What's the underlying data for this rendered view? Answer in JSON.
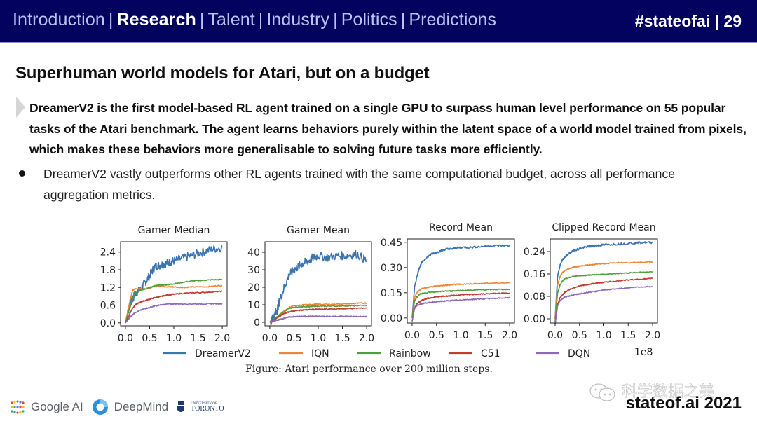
{
  "header": {
    "nav": [
      {
        "label": "Introduction",
        "active": false
      },
      {
        "label": "Research",
        "active": true
      },
      {
        "label": "Talent",
        "active": false
      },
      {
        "label": "Industry",
        "active": false
      },
      {
        "label": "Politics",
        "active": false
      },
      {
        "label": "Predictions",
        "active": false
      }
    ],
    "separator": "|",
    "slide_tag": "#stateofai | 29"
  },
  "slide": {
    "title": "Superhuman world models for Atari, but on a budget",
    "lead": "DreamerV2 is the first model-based RL agent trained on a single GPU to surpass human level performance on 55 popular tasks of the Atari benchmark. The agent learns behaviors purely within the latent space of a world model trained from pixels, which makes these behaviors more generalisable to solving future tasks more efficiently.",
    "bullet": "DreamerV2 vastly outperforms other RL agents trained with the same computational budget, across all performance aggregation metrics.",
    "caption": "Figure:  Atari performance over 200 million steps."
  },
  "footer": {
    "logos": [
      "Google AI",
      "DeepMind",
      "University of Toronto"
    ],
    "toronto_small": "UNIVERSITY OF",
    "toronto_big": "TORONTO",
    "watermark": "科学数据之美",
    "brand": "stateof.ai 2021"
  },
  "colors": {
    "header_bg": "#03035f",
    "DreamerV2": "#3b75af",
    "IQN": "#ef8636",
    "Rainbow": "#519e3e",
    "C51": "#c53a32",
    "DQN": "#8d69b8"
  },
  "chart_data": {
    "type": "line",
    "x_multiplier_label": "1e8",
    "x_ticks": [
      "0.0",
      "0.5",
      "1.0",
      "1.5",
      "2.0"
    ],
    "x": [
      0.0,
      0.05,
      0.1,
      0.15,
      0.2,
      0.3,
      0.4,
      0.5,
      0.6,
      0.7,
      0.8,
      0.9,
      1.0,
      1.2,
      1.4,
      1.6,
      1.8,
      2.0
    ],
    "legend": [
      "DreamerV2",
      "IQN",
      "Rainbow",
      "C51",
      "DQN"
    ],
    "legend_placement": "bottom",
    "panels": [
      {
        "title": "Gamer Median",
        "ylim": [
          -0.1,
          2.75
        ],
        "y_ticks": [
          "0.0",
          "0.6",
          "1.2",
          "1.8",
          "2.4"
        ],
        "y_tick_values": [
          0.0,
          0.6,
          1.2,
          1.8,
          2.4
        ],
        "series": [
          {
            "name": "DreamerV2",
            "values": [
              0.0,
              0.35,
              0.65,
              0.8,
              1.0,
              1.1,
              1.35,
              1.6,
              1.9,
              1.95,
              2.0,
              2.05,
              2.1,
              2.2,
              2.3,
              2.4,
              2.5,
              2.55
            ]
          },
          {
            "name": "IQN",
            "values": [
              0.0,
              0.4,
              0.8,
              1.1,
              1.15,
              1.15,
              1.15,
              1.18,
              1.25,
              1.25,
              1.23,
              1.22,
              1.22,
              1.2,
              1.22,
              1.22,
              1.24,
              1.27
            ]
          },
          {
            "name": "Rainbow",
            "values": [
              0.0,
              0.3,
              0.6,
              0.8,
              1.0,
              1.1,
              1.15,
              1.2,
              1.25,
              1.28,
              1.28,
              1.3,
              1.32,
              1.38,
              1.42,
              1.44,
              1.46,
              1.47
            ]
          },
          {
            "name": "C51",
            "values": [
              0.0,
              0.15,
              0.35,
              0.5,
              0.6,
              0.7,
              0.75,
              0.8,
              0.85,
              0.88,
              0.92,
              0.95,
              0.97,
              1.0,
              1.02,
              1.03,
              1.05,
              1.07
            ]
          },
          {
            "name": "DQN",
            "values": [
              0.0,
              0.1,
              0.2,
              0.28,
              0.35,
              0.42,
              0.48,
              0.52,
              0.57,
              0.6,
              0.62,
              0.64,
              0.64,
              0.64,
              0.64,
              0.64,
              0.65,
              0.65
            ]
          }
        ]
      },
      {
        "title": "Gamer Mean",
        "ylim": [
          -2,
          46
        ],
        "y_ticks": [
          "0",
          "10",
          "20",
          "30",
          "40"
        ],
        "y_tick_values": [
          0,
          10,
          20,
          30,
          40
        ],
        "series": [
          {
            "name": "DreamerV2",
            "values": [
              0,
              2,
              4,
              7,
              12,
              20,
              27,
              30,
              32,
              34,
              35,
              37,
              38,
              37,
              38,
              38,
              39,
              35
            ]
          },
          {
            "name": "IQN",
            "values": [
              0,
              1,
              2,
              3,
              4.5,
              6.5,
              8.5,
              9.5,
              9.5,
              10,
              10,
              10.2,
              10.3,
              10.2,
              10.5,
              10.5,
              10.8,
              11
            ]
          },
          {
            "name": "Rainbow",
            "values": [
              0,
              1,
              2,
              3,
              4,
              6,
              8,
              8.5,
              8.8,
              9,
              9,
              9.2,
              9.3,
              9.2,
              9.3,
              9.4,
              9.5,
              9.6
            ]
          },
          {
            "name": "C51",
            "values": [
              0,
              0.8,
              1.5,
              2.5,
              3.5,
              5,
              6,
              6.5,
              6.8,
              7,
              7.2,
              7.3,
              7.4,
              7.5,
              7.6,
              7.8,
              8,
              8.2
            ]
          },
          {
            "name": "DQN",
            "values": [
              0,
              0.4,
              0.8,
              1.2,
              1.6,
              2.3,
              3,
              3.2,
              3.3,
              3.4,
              3.4,
              3.4,
              3.4,
              3.4,
              3.4,
              3.4,
              3.3,
              3.2
            ]
          }
        ]
      },
      {
        "title": "Record Mean",
        "ylim": [
          -0.03,
          0.47
        ],
        "y_ticks": [
          "0.00",
          "0.15",
          "0.30",
          "0.45"
        ],
        "y_tick_values": [
          0.0,
          0.15,
          0.3,
          0.45
        ],
        "series": [
          {
            "name": "DreamerV2",
            "values": [
              0.0,
              0.18,
              0.25,
              0.3,
              0.33,
              0.36,
              0.38,
              0.39,
              0.4,
              0.41,
              0.41,
              0.415,
              0.42,
              0.42,
              0.425,
              0.43,
              0.43,
              0.43
            ]
          },
          {
            "name": "IQN",
            "values": [
              0.0,
              0.12,
              0.15,
              0.165,
              0.175,
              0.18,
              0.185,
              0.19,
              0.192,
              0.195,
              0.197,
              0.2,
              0.2,
              0.203,
              0.205,
              0.207,
              0.208,
              0.21
            ]
          },
          {
            "name": "Rainbow",
            "values": [
              0.0,
              0.1,
              0.125,
              0.14,
              0.145,
              0.15,
              0.155,
              0.155,
              0.157,
              0.16,
              0.16,
              0.162,
              0.163,
              0.165,
              0.167,
              0.168,
              0.17,
              0.17
            ]
          },
          {
            "name": "C51",
            "values": [
              -0.02,
              0.06,
              0.085,
              0.095,
              0.105,
              0.115,
              0.12,
              0.125,
              0.128,
              0.13,
              0.132,
              0.134,
              0.136,
              0.139,
              0.142,
              0.144,
              0.146,
              0.148
            ]
          },
          {
            "name": "DQN",
            "values": [
              -0.02,
              0.055,
              0.075,
              0.08,
              0.085,
              0.09,
              0.093,
              0.096,
              0.099,
              0.101,
              0.103,
              0.105,
              0.107,
              0.11,
              0.113,
              0.116,
              0.118,
              0.12
            ]
          }
        ]
      },
      {
        "title": "Clipped Record Mean",
        "ylim": [
          -0.015,
          0.285
        ],
        "y_ticks": [
          "0.00",
          "0.08",
          "0.16",
          "0.24"
        ],
        "y_tick_values": [
          0.0,
          0.08,
          0.16,
          0.24
        ],
        "series": [
          {
            "name": "DreamerV2",
            "values": [
              0.0,
              0.15,
              0.19,
              0.21,
              0.22,
              0.235,
              0.245,
              0.25,
              0.255,
              0.258,
              0.26,
              0.262,
              0.264,
              0.266,
              0.268,
              0.27,
              0.272,
              0.272
            ]
          },
          {
            "name": "IQN",
            "values": [
              0.0,
              0.12,
              0.15,
              0.165,
              0.172,
              0.18,
              0.185,
              0.188,
              0.19,
              0.192,
              0.194,
              0.196,
              0.197,
              0.199,
              0.2,
              0.201,
              0.202,
              0.203
            ]
          },
          {
            "name": "Rainbow",
            "values": [
              -0.01,
              0.09,
              0.12,
              0.135,
              0.142,
              0.148,
              0.152,
              0.154,
              0.155,
              0.156,
              0.157,
              0.158,
              0.159,
              0.161,
              0.163,
              0.165,
              0.166,
              0.167
            ]
          },
          {
            "name": "C51",
            "values": [
              -0.02,
              0.05,
              0.075,
              0.085,
              0.095,
              0.105,
              0.112,
              0.117,
              0.12,
              0.123,
              0.126,
              0.128,
              0.13,
              0.134,
              0.137,
              0.14,
              0.142,
              0.144
            ]
          },
          {
            "name": "DQN",
            "values": [
              -0.02,
              0.045,
              0.065,
              0.072,
              0.077,
              0.082,
              0.086,
              0.089,
              0.092,
              0.095,
              0.097,
              0.1,
              0.102,
              0.106,
              0.109,
              0.112,
              0.114,
              0.116
            ]
          }
        ]
      }
    ]
  }
}
